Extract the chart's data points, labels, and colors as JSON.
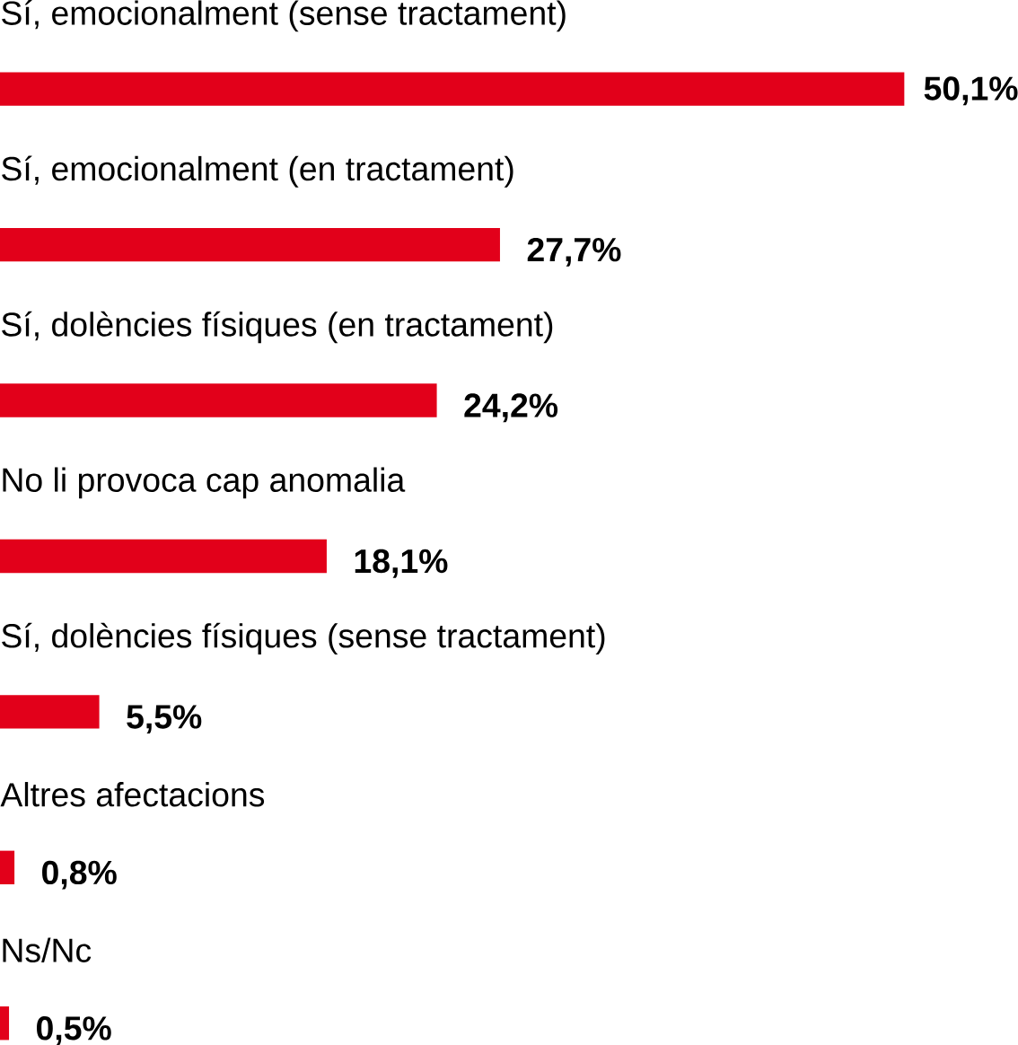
{
  "chart_data": {
    "type": "bar",
    "orientation": "horizontal",
    "categories": [
      "Sí, emocionalment (sense tractament)",
      "Sí, emocionalment (en tractament)",
      "Sí, dolències físiques (en tractament)",
      "No li provoca cap anomalia",
      "Sí, dolències físiques (sense tractament)",
      "Altres afectacions",
      "Ns/Nc"
    ],
    "values": [
      50.1,
      27.7,
      24.2,
      18.1,
      5.5,
      0.8,
      0.5
    ],
    "value_labels": [
      "50,1%",
      "27,7%",
      "24,2%",
      "18,1%",
      "5,5%",
      "0,8%",
      "0,5%"
    ],
    "color": "#e2001a"
  }
}
